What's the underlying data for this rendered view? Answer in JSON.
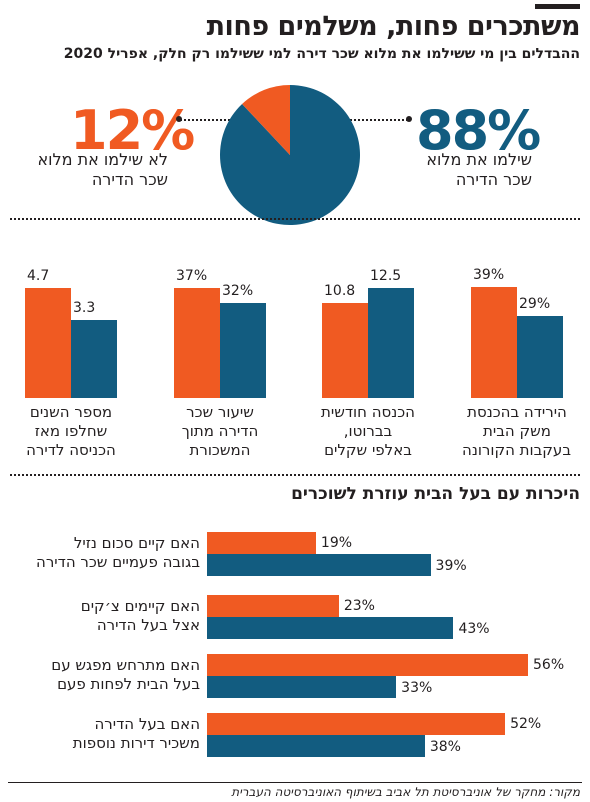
{
  "header": {
    "title": "משתכרים פחות, משלמים פחות",
    "subtitle": "ההבדלים בין  מי ששילמו את מלוא שכר דירה למי ששילמו רק חלק, אפריל 2020"
  },
  "colors": {
    "full_payment": "#125c80",
    "partial_payment": "#f05a22",
    "text": "#231f20"
  },
  "pie": {
    "full": {
      "value": "88%",
      "label_line1": "שילמו את מלוא",
      "label_line2": "שכר הדירה"
    },
    "partial": {
      "value": "12%",
      "label_line1": "לא שילמו את מלוא",
      "label_line2": "שכר הדירה"
    }
  },
  "section2": {
    "title": "היכרות עם בעל הבית עוזרת לשוכרים"
  },
  "source": "מקור: מחקר של אוניברסיטת תל אביב בשיתוף האוניברסיטה העברית",
  "chart_data": [
    {
      "type": "pie",
      "categories": [
        "שילמו את מלוא שכר הדירה",
        "לא שילמו את מלוא שכר הדירה"
      ],
      "values": [
        88,
        12
      ]
    },
    {
      "type": "bar",
      "groups": [
        {
          "label_lines": [
            "הירידה בהכנסת",
            "משק הבית",
            "בעקבות הקורונה"
          ],
          "partial": 39,
          "full": 29,
          "partial_label": "39%",
          "full_label": "29%",
          "max": 45
        },
        {
          "label_lines": [
            "הכנסה חודשית",
            "בברוטו,",
            "באלפי שקלים"
          ],
          "partial": 10.8,
          "full": 12.5,
          "partial_label": "10.8",
          "full_label": "12.5",
          "max": 14.5
        },
        {
          "label_lines": [
            "שיעור שכר",
            "הדירה מתוך",
            "המשכורת"
          ],
          "partial": 37,
          "full": 32,
          "partial_label": "37%",
          "full_label": "32%",
          "max": 43
        },
        {
          "label_lines": [
            "מספר השנים",
            "שחלפו מאז",
            "הכניסה לדירה"
          ],
          "partial": 4.7,
          "full": 3.3,
          "partial_label": "4.7",
          "full_label": "3.3",
          "max": 5.45
        }
      ]
    },
    {
      "type": "bar",
      "orientation": "horizontal",
      "xlim": [
        0,
        60
      ],
      "rows": [
        {
          "label_lines": [
            "האם קיים סכום נזיל",
            "בגובה פעמיים שכר הדירה"
          ],
          "partial": 19,
          "full": 39,
          "partial_label": "19%",
          "full_label": "39%"
        },
        {
          "label_lines": [
            "האם קיימים צ׳קים",
            "אצל בעל הדירה"
          ],
          "partial": 23,
          "full": 43,
          "partial_label": "23%",
          "full_label": "43%"
        },
        {
          "label_lines": [
            "האם מתרחש מפגש עם",
            "בעל הבית  לפחות פעם"
          ],
          "partial": 56,
          "full": 33,
          "partial_label": "56%",
          "full_label": "33%"
        },
        {
          "label_lines": [
            "האם בעל הדירה",
            "משכיר דירות נוספות"
          ],
          "partial": 52,
          "full": 38,
          "partial_label": "52%",
          "full_label": "38%"
        }
      ]
    }
  ]
}
